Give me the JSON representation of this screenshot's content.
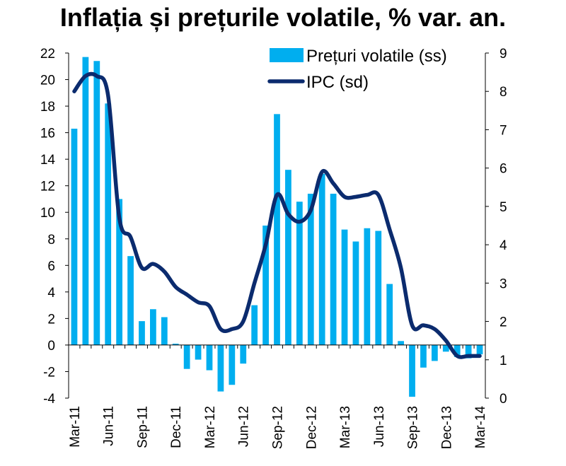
{
  "chart_data": {
    "type": "bar+line",
    "title": "Inflația și prețurile volatile, % var. an.",
    "x": [
      "Mar-11",
      "Apr-11",
      "May-11",
      "Jun-11",
      "Jul-11",
      "Aug-11",
      "Sep-11",
      "Oct-11",
      "Nov-11",
      "Dec-11",
      "Jan-12",
      "Feb-12",
      "Mar-12",
      "Apr-12",
      "May-12",
      "Jun-12",
      "Jul-12",
      "Aug-12",
      "Sep-12",
      "Oct-12",
      "Nov-12",
      "Dec-12",
      "Jan-13",
      "Feb-13",
      "Mar-13",
      "Apr-13",
      "May-13",
      "Jun-13",
      "Jul-13",
      "Aug-13",
      "Sep-13",
      "Oct-13",
      "Nov-13",
      "Dec-13",
      "Jan-14",
      "Feb-14",
      "Mar-14"
    ],
    "x_tick_labels": [
      "Mar-11",
      "Jun-11",
      "Sep-11",
      "Dec-11",
      "Mar-12",
      "Jun-12",
      "Sep-12",
      "Dec-12",
      "Mar-13",
      "Jun-13",
      "Sep-13",
      "Dec-13",
      "Mar-14"
    ],
    "series": [
      {
        "name": "Prețuri volatile (ss)",
        "type": "bar",
        "axis": "left",
        "color": "#00AEEF",
        "values": [
          16.3,
          21.7,
          21.4,
          18.2,
          11.0,
          6.7,
          1.8,
          2.7,
          2.1,
          0.1,
          -1.8,
          -1.1,
          -1.9,
          -3.5,
          -3.0,
          -1.4,
          3.0,
          9.0,
          17.4,
          13.2,
          10.8,
          11.4,
          12.9,
          11.4,
          8.7,
          7.8,
          8.8,
          8.6,
          4.6,
          0.3,
          -3.9,
          -1.7,
          -1.2,
          -0.5,
          -0.9,
          -1.0,
          -0.7
        ]
      },
      {
        "name": "IPC (sd)",
        "type": "line",
        "axis": "right",
        "color": "#0B2B6E",
        "values": [
          8.0,
          8.4,
          8.4,
          7.9,
          4.7,
          4.2,
          3.4,
          3.5,
          3.3,
          2.9,
          2.7,
          2.5,
          2.4,
          1.8,
          1.8,
          2.0,
          3.0,
          4.0,
          5.3,
          4.8,
          4.6,
          4.9,
          5.9,
          5.6,
          5.25,
          5.25,
          5.3,
          5.3,
          4.4,
          3.4,
          1.9,
          1.9,
          1.8,
          1.5,
          1.1,
          1.1,
          1.1
        ]
      }
    ],
    "y_left": {
      "min": -4,
      "max": 22,
      "ticks": [
        22,
        20,
        18,
        16,
        14,
        12,
        10,
        8,
        6,
        4,
        2,
        0,
        -2,
        -4
      ]
    },
    "y_right": {
      "min": 0,
      "max": 9,
      "ticks": [
        9,
        8,
        7,
        6,
        5,
        4,
        3,
        2,
        1,
        0
      ]
    },
    "grid": false,
    "legend_position": "top-right",
    "legend": [
      "Prețuri volatile (ss)",
      "IPC (sd)"
    ]
  }
}
